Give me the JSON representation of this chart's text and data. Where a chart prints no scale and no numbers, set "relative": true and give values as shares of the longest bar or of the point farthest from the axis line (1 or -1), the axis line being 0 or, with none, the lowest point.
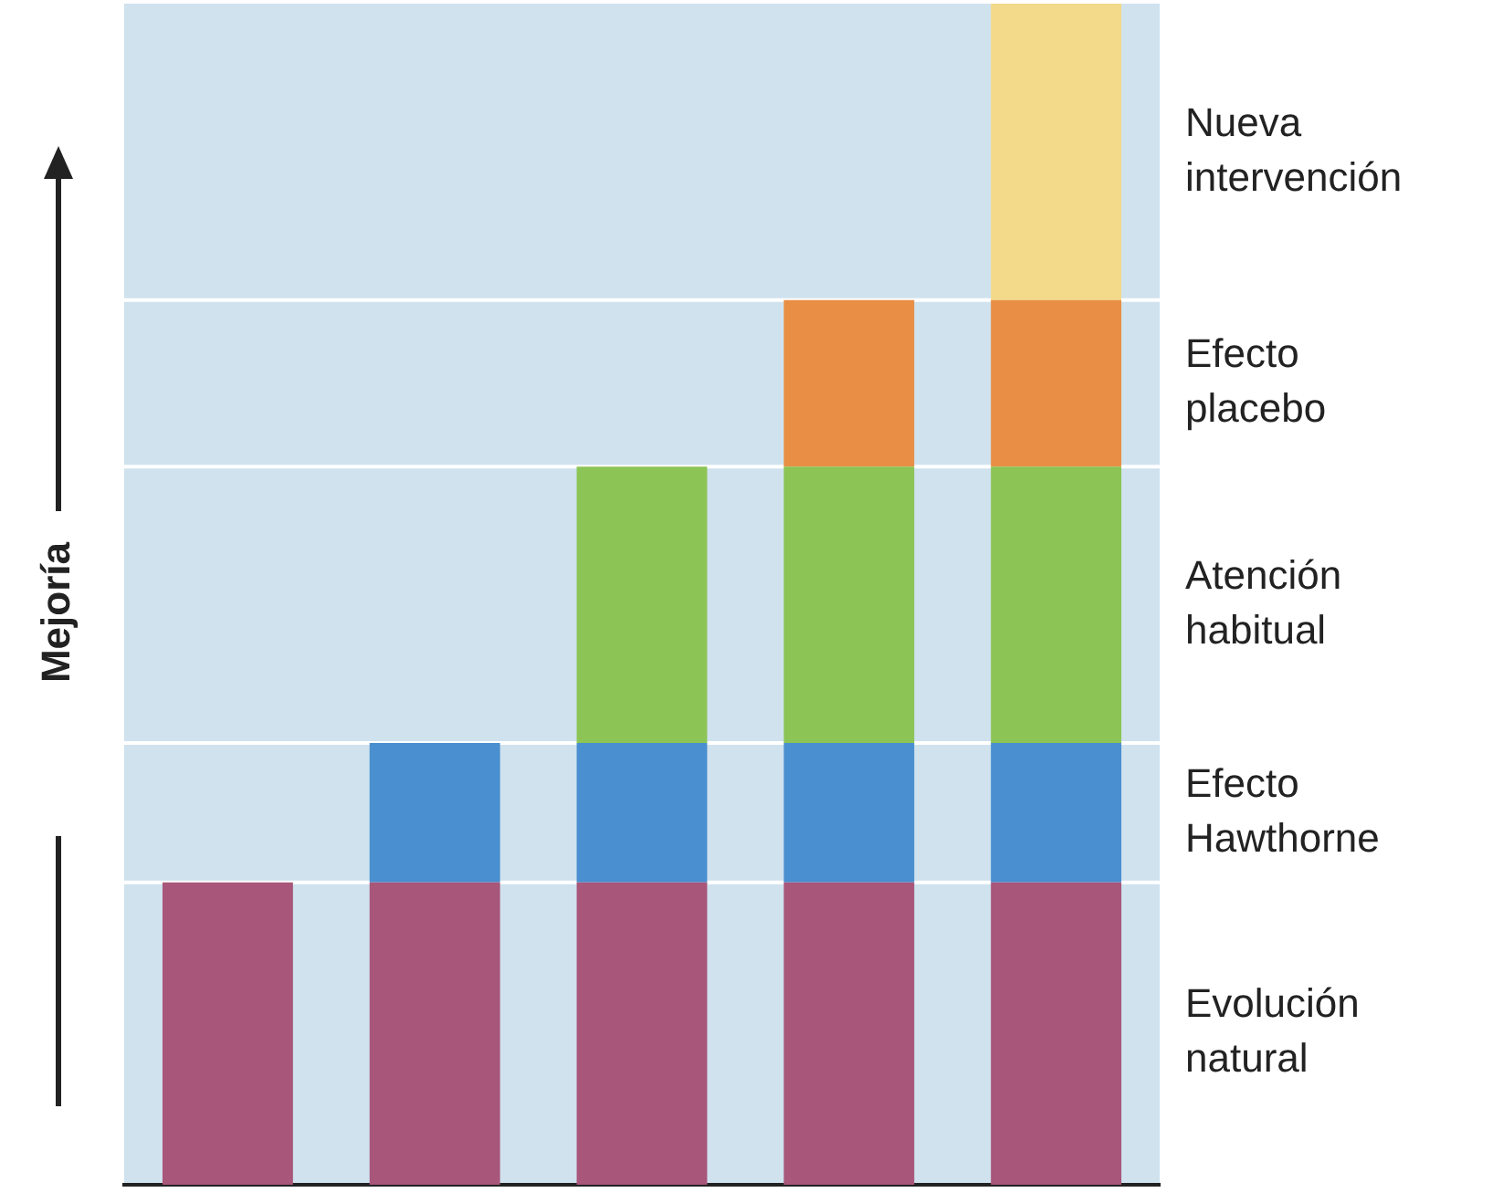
{
  "chart_data": {
    "type": "bar",
    "stacked": true,
    "relative": true,
    "ylabel": "Mejoría",
    "legend": false,
    "grid": false,
    "categories": [
      null,
      null,
      null,
      null,
      null
    ],
    "series": [
      {
        "name": "Evolución natural",
        "color": "#a8567a",
        "values": [
          0.256,
          0.256,
          0.256,
          0.256,
          0.256
        ]
      },
      {
        "name": "Efecto Hawthorne",
        "color": "#4a8fcf",
        "values": [
          null,
          0.118,
          0.118,
          0.118,
          0.118
        ]
      },
      {
        "name": "Atención habitual",
        "color": "#8cc456",
        "values": [
          null,
          null,
          0.234,
          0.234,
          0.234
        ]
      },
      {
        "name": "Efecto placebo",
        "color": "#e88f45",
        "values": [
          null,
          null,
          null,
          0.141,
          0.141
        ]
      },
      {
        "name": "Nueva intervención",
        "color": "#f3d98a",
        "values": [
          null,
          null,
          null,
          null,
          0.251
        ]
      }
    ],
    "ref_lines": [
      {
        "axis": "y",
        "value": 0.256,
        "color": "#ffffff"
      },
      {
        "axis": "y",
        "value": 0.374,
        "color": "#ffffff"
      },
      {
        "axis": "y",
        "value": 0.608,
        "color": "#ffffff"
      },
      {
        "axis": "y",
        "value": 0.749,
        "color": "#ffffff"
      }
    ]
  }
}
